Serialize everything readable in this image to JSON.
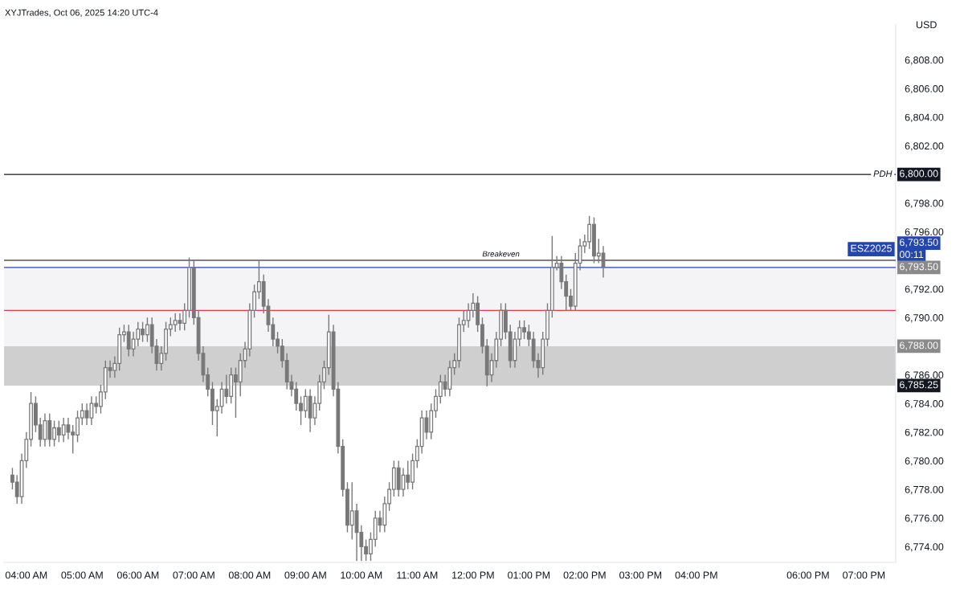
{
  "chart_data": {
    "type": "candlestick",
    "title": "XYJTrades, Oct 06, 2025 14:20 UTC-4",
    "ylabel": "USD",
    "x": [
      3.75,
      3.833,
      3.917,
      4,
      4.083,
      4.167,
      4.25,
      4.333,
      4.417,
      4.5,
      4.583,
      4.667,
      4.75,
      4.833,
      4.917,
      5,
      5.083,
      5.167,
      5.25,
      5.333,
      5.417,
      5.5,
      5.583,
      5.667,
      5.75,
      5.833,
      5.917,
      6,
      6.083,
      6.167,
      6.25,
      6.333,
      6.417,
      6.5,
      6.583,
      6.667,
      6.75,
      6.833,
      6.917,
      7,
      7.083,
      7.167,
      7.25,
      7.333,
      7.417,
      7.5,
      7.583,
      7.667,
      7.75,
      7.833,
      7.917,
      8,
      8.083,
      8.167,
      8.25,
      8.333,
      8.417,
      8.5,
      8.583,
      8.667,
      8.75,
      8.833,
      8.917,
      9,
      9.083,
      9.167,
      9.25,
      9.333,
      9.417,
      9.5,
      9.583,
      9.667,
      9.75,
      9.833,
      9.917,
      10,
      10.083,
      10.167,
      10.25,
      10.333,
      10.417,
      10.5,
      10.583,
      10.667,
      10.75,
      10.833,
      10.917,
      11,
      11.083,
      11.167,
      11.25,
      11.333,
      11.417,
      11.5,
      11.583,
      11.667,
      11.75,
      11.833,
      11.917,
      12,
      12.083,
      12.167,
      12.25,
      12.333,
      12.417,
      12.5,
      12.583,
      12.667,
      12.75,
      12.833,
      12.917,
      13,
      13.083,
      13.167,
      13.25,
      13.333,
      13.417,
      13.5,
      13.583,
      13.667,
      13.75,
      13.833,
      13.917,
      14,
      14.083,
      14.167,
      14.25,
      14.333
    ],
    "series": [
      {
        "color": "#787878",
        "ohlc": [
          [
            6779,
            6779.5,
            6778,
            6778.5
          ],
          [
            6778.5,
            6779,
            6777,
            6777.5
          ],
          [
            6777.5,
            6780.5,
            6777,
            6780
          ],
          [
            6780,
            6782,
            6779.5,
            6781.5
          ],
          [
            6781.5,
            6784.8,
            6781,
            6784
          ],
          [
            6784,
            6784.5,
            6782,
            6782.5
          ],
          [
            6782.5,
            6783,
            6781,
            6781.5
          ],
          [
            6781.5,
            6783.3,
            6781,
            6782.8
          ],
          [
            6782.8,
            6783.3,
            6781,
            6781.5
          ],
          [
            6781.5,
            6782.8,
            6781,
            6782.3
          ],
          [
            6782.3,
            6782.8,
            6781.3,
            6781.8
          ],
          [
            6781.8,
            6783,
            6781.3,
            6782.5
          ],
          [
            6782.5,
            6783,
            6781.5,
            6782
          ],
          [
            6782,
            6782.5,
            6780.5,
            6781.8
          ],
          [
            6781.8,
            6783.5,
            6781.3,
            6783
          ],
          [
            6783,
            6784,
            6782.5,
            6783.5
          ],
          [
            6783.5,
            6784,
            6782.5,
            6783
          ],
          [
            6783,
            6784.5,
            6782.5,
            6784
          ],
          [
            6784,
            6784.5,
            6783.3,
            6783.8
          ],
          [
            6783.8,
            6785.3,
            6783.3,
            6784.8
          ],
          [
            6784.8,
            6787,
            6784.3,
            6786.5
          ],
          [
            6786.5,
            6787,
            6785.8,
            6786.3
          ],
          [
            6786.3,
            6787.3,
            6785.8,
            6786.8
          ],
          [
            6786.8,
            6789.3,
            6786.3,
            6788.8
          ],
          [
            6788.8,
            6789.5,
            6788.3,
            6789
          ],
          [
            6789,
            6789.5,
            6787.3,
            6787.8
          ],
          [
            6787.8,
            6789,
            6787.3,
            6788.5
          ],
          [
            6788.5,
            6789.7,
            6788,
            6789.2
          ],
          [
            6789.2,
            6789.7,
            6788.3,
            6788.8
          ],
          [
            6788.8,
            6790,
            6788.3,
            6789.5
          ],
          [
            6789.5,
            6790,
            6787.5,
            6788
          ],
          [
            6788,
            6788.5,
            6786.3,
            6786.8
          ],
          [
            6786.8,
            6788,
            6786.3,
            6787.5
          ],
          [
            6787.5,
            6789.7,
            6787,
            6789.2
          ],
          [
            6789.2,
            6790,
            6788.7,
            6789.5
          ],
          [
            6789.5,
            6790.3,
            6789,
            6789.8
          ],
          [
            6789.8,
            6790.3,
            6789.1,
            6789.6
          ],
          [
            6789.6,
            6791,
            6789.1,
            6790.5
          ],
          [
            6790.5,
            6794.2,
            6790,
            6793.5
          ],
          [
            6793.5,
            6794,
            6789.5,
            6790
          ],
          [
            6790,
            6790.5,
            6787,
            6787.5
          ],
          [
            6787.5,
            6788,
            6785.5,
            6786
          ],
          [
            6786,
            6786.5,
            6784.5,
            6785
          ],
          [
            6785,
            6785.5,
            6782.5,
            6783.5
          ],
          [
            6783.5,
            6784.3,
            6781.7,
            6783.8
          ],
          [
            6783.8,
            6785.5,
            6783.3,
            6785
          ],
          [
            6785,
            6786,
            6784,
            6784.5
          ],
          [
            6784.5,
            6786.5,
            6784,
            6786
          ],
          [
            6786,
            6786.5,
            6783,
            6785.5
          ],
          [
            6785.5,
            6787.5,
            6784.5,
            6787
          ],
          [
            6787,
            6788.3,
            6786.5,
            6787.8
          ],
          [
            6787.8,
            6791,
            6787.3,
            6790.5
          ],
          [
            6790.5,
            6792.3,
            6790,
            6791.8
          ],
          [
            6791.8,
            6794,
            6791.3,
            6792.5
          ],
          [
            6792.5,
            6793,
            6790.3,
            6790.8
          ],
          [
            6790.8,
            6791.3,
            6789,
            6789.5
          ],
          [
            6789.5,
            6790,
            6788,
            6788.5
          ],
          [
            6788.5,
            6789,
            6787.5,
            6788
          ],
          [
            6788,
            6788.5,
            6786.5,
            6787
          ],
          [
            6787,
            6787.5,
            6785,
            6785.5
          ],
          [
            6785.5,
            6786,
            6784.5,
            6785
          ],
          [
            6785,
            6785.5,
            6783.5,
            6784
          ],
          [
            6784,
            6784.5,
            6782.5,
            6783.5
          ],
          [
            6783.5,
            6785,
            6783,
            6784.5
          ],
          [
            6784.5,
            6785,
            6782,
            6783
          ],
          [
            6783,
            6784.5,
            6782.5,
            6784
          ],
          [
            6784,
            6786,
            6783.5,
            6785.5
          ],
          [
            6785.5,
            6787,
            6785,
            6786.5
          ],
          [
            6786.5,
            6790.2,
            6786,
            6789
          ],
          [
            6789,
            6789.5,
            6784.5,
            6785
          ],
          [
            6785,
            6785.5,
            6780.5,
            6781
          ],
          [
            6781,
            6781.5,
            6777.5,
            6778
          ],
          [
            6778,
            6778.5,
            6775,
            6775.5
          ],
          [
            6775.5,
            6778.5,
            6774.5,
            6776.5
          ],
          [
            6776.5,
            6777,
            6773,
            6775
          ],
          [
            6775,
            6775.5,
            6773,
            6774
          ],
          [
            6774,
            6774.5,
            6773,
            6773.5
          ],
          [
            6773.5,
            6775,
            6773,
            6774.5
          ],
          [
            6774.5,
            6776.5,
            6774,
            6776
          ],
          [
            6776,
            6776.5,
            6775,
            6775.5
          ],
          [
            6775.5,
            6777.5,
            6775,
            6777
          ],
          [
            6777,
            6778.5,
            6776.5,
            6778
          ],
          [
            6778,
            6780,
            6777.5,
            6779.5
          ],
          [
            6779.5,
            6780,
            6777.5,
            6778
          ],
          [
            6778,
            6779.5,
            6777.5,
            6779
          ],
          [
            6779,
            6780,
            6778,
            6778.5
          ],
          [
            6778.5,
            6780.5,
            6778,
            6780
          ],
          [
            6780,
            6781.5,
            6779.5,
            6781
          ],
          [
            6781,
            6783.5,
            6780.5,
            6783
          ],
          [
            6783,
            6783.5,
            6781.5,
            6782
          ],
          [
            6782,
            6784,
            6781.5,
            6783.5
          ],
          [
            6783.5,
            6785,
            6783,
            6784.5
          ],
          [
            6784.5,
            6786,
            6784,
            6785.5
          ],
          [
            6785.5,
            6786,
            6784.5,
            6785
          ],
          [
            6785,
            6787,
            6784.5,
            6786.5
          ],
          [
            6786.5,
            6787.5,
            6786,
            6787
          ],
          [
            6787,
            6790,
            6786.5,
            6789.5
          ],
          [
            6789.5,
            6790.5,
            6789,
            6789.8
          ],
          [
            6789.8,
            6791,
            6789.3,
            6790.5
          ],
          [
            6790.5,
            6791.7,
            6790,
            6791
          ],
          [
            6791,
            6791.5,
            6789,
            6789.5
          ],
          [
            6789.5,
            6790,
            6787.5,
            6788
          ],
          [
            6788,
            6788.5,
            6785.2,
            6786
          ],
          [
            6786,
            6787.5,
            6785.5,
            6787
          ],
          [
            6787,
            6789,
            6786.5,
            6788.5
          ],
          [
            6788.5,
            6791,
            6788,
            6790.5
          ],
          [
            6790.5,
            6791,
            6788.5,
            6789
          ],
          [
            6789,
            6789.5,
            6786.5,
            6787
          ],
          [
            6787,
            6789,
            6786.5,
            6788.5
          ],
          [
            6788.5,
            6789.8,
            6788,
            6789.3
          ],
          [
            6789.3,
            6789.8,
            6788.5,
            6789
          ],
          [
            6789,
            6789.5,
            6788,
            6788.5
          ],
          [
            6788.5,
            6789,
            6786.5,
            6787
          ],
          [
            6787,
            6787.5,
            6785.8,
            6786.5
          ],
          [
            6786.5,
            6789,
            6786,
            6788.5
          ],
          [
            6788.5,
            6791,
            6788,
            6790.5
          ],
          [
            6790.5,
            6795.7,
            6790,
            6793.5
          ],
          [
            6793.5,
            6794.3,
            6793.3,
            6793.8
          ],
          [
            6793.8,
            6794.3,
            6792,
            6792.5
          ],
          [
            6792.5,
            6793,
            6790.5,
            6791.5
          ],
          [
            6791.5,
            6792,
            6790.5,
            6790.8
          ],
          [
            6790.8,
            6794.5,
            6790.5,
            6793.8
          ],
          [
            6793.8,
            6795.5,
            6793.3,
            6795
          ],
          [
            6795,
            6795.8,
            6794.5,
            6795.3
          ],
          [
            6795.3,
            6797.1,
            6794.8,
            6796.5
          ],
          [
            6796.5,
            6797,
            6793.8,
            6794.3
          ],
          [
            6794.3,
            6795.5,
            6793.8,
            6794.5
          ],
          [
            6794.5,
            6795,
            6792.8,
            6793.5
          ]
        ]
      }
    ],
    "xlim": [
      3.6,
      19.57
    ],
    "xticks": [
      {
        "value": 4,
        "label": "04:00 AM"
      },
      {
        "value": 5,
        "label": "05:00 AM"
      },
      {
        "value": 6,
        "label": "06:00 AM"
      },
      {
        "value": 7,
        "label": "07:00 AM"
      },
      {
        "value": 8,
        "label": "08:00 AM"
      },
      {
        "value": 9,
        "label": "09:00 AM"
      },
      {
        "value": 10,
        "label": "10:00 AM"
      },
      {
        "value": 11,
        "label": "11:00 AM"
      },
      {
        "value": 12,
        "label": "12:00 PM"
      },
      {
        "value": 13,
        "label": "01:00 PM"
      },
      {
        "value": 14,
        "label": "02:00 PM"
      },
      {
        "value": 15,
        "label": "03:00 PM"
      },
      {
        "value": 16,
        "label": "04:00 PM"
      },
      {
        "value": 18,
        "label": "06:00 PM"
      },
      {
        "value": 19,
        "label": "07:00 PM"
      }
    ],
    "ylim": [
      6772.9,
      6810.5
    ],
    "yticks": [
      {
        "value": 6774,
        "label": "6,774.00"
      },
      {
        "value": 6776,
        "label": "6,776.00"
      },
      {
        "value": 6778,
        "label": "6,778.00"
      },
      {
        "value": 6780,
        "label": "6,780.00"
      },
      {
        "value": 6782,
        "label": "6,782.00"
      },
      {
        "value": 6784,
        "label": "6,784.00"
      },
      {
        "value": 6786,
        "label": "6,786.00"
      },
      {
        "value": 6790,
        "label": "6,790.00"
      },
      {
        "value": 6792,
        "label": "6,792.00"
      },
      {
        "value": 6796,
        "label": "6,796.00"
      },
      {
        "value": 6798,
        "label": "6,798.00"
      },
      {
        "value": 6802,
        "label": "6,802.00"
      },
      {
        "value": 6804,
        "label": "6,804.00"
      },
      {
        "value": 6806,
        "label": "6,806.00"
      },
      {
        "value": 6808,
        "label": "6,808.00"
      }
    ],
    "ref_lines": [
      {
        "axis": "y",
        "value": 6800,
        "label": "PDH",
        "color": "#131722"
      },
      {
        "axis": "y",
        "value": 6794,
        "color": "#555555"
      },
      {
        "axis": "y",
        "value": 6793.5,
        "label": "ESZ2025",
        "color": "#2346b0"
      },
      {
        "axis": "y",
        "value": 6790.5,
        "color": "#f23645"
      }
    ],
    "bands": [
      {
        "axis": "y",
        "from": 6788,
        "to": 6793.5,
        "color": "#f4f4f6"
      },
      {
        "axis": "y",
        "from": 6785.25,
        "to": 6788,
        "color": "#cfcfcf"
      }
    ],
    "annotations": [
      {
        "text": "Breakeven",
        "x": 12.5,
        "y": 6794
      },
      "6,800.00",
      "6,793.50",
      "00:11",
      "6,793.50",
      "6,788.00",
      "6,785.25"
    ],
    "grid": false
  }
}
